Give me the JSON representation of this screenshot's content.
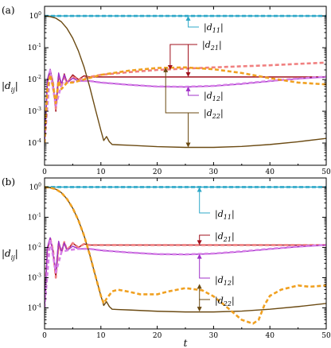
{
  "chart_data": [
    {
      "type": "line",
      "panel_label": "(a)",
      "xlabel": "",
      "ylabel": "|d_ij|",
      "ylabel_parts": {
        "main": "|d",
        "sub": "ij",
        "end": "|"
      },
      "xlim": [
        0,
        50
      ],
      "ylim": [
        2e-05,
        2
      ],
      "yscale": "log",
      "grid": false,
      "x_ticks": [
        0,
        10,
        20,
        30,
        40,
        50
      ],
      "y_ticks": [
        {
          "value": 1,
          "base": "10",
          "exp": "0"
        },
        {
          "value": 0.1,
          "base": "10",
          "exp": "-1"
        },
        {
          "value": 0.01,
          "base": "10",
          "exp": "-2"
        },
        {
          "value": 0.001,
          "base": "10",
          "exp": "-3"
        },
        {
          "value": 0.0001,
          "base": "10",
          "exp": "-4"
        }
      ],
      "series": [
        {
          "name": "|d11|",
          "color": "#2ea8c8",
          "style": "solid",
          "x": [
            0,
            10,
            20,
            30,
            40,
            50
          ],
          "y": [
            1,
            1,
            1,
            1,
            1,
            1
          ]
        },
        {
          "name": "|d11|",
          "color": "#2ea8c8",
          "style": "dashed",
          "x": [
            0,
            10,
            20,
            30,
            40,
            50
          ],
          "y": [
            1,
            1,
            1,
            1,
            1,
            1
          ]
        },
        {
          "name": "|d21|",
          "color": "#a0101c",
          "style": "solid",
          "x": [
            0,
            0.5,
            1,
            1.5,
            2,
            2.5,
            3,
            3.5,
            4,
            5,
            6,
            7,
            8,
            10,
            20,
            30,
            40,
            50
          ],
          "y": [
            0.0001,
            0.008,
            0.02,
            0.008,
            0.001,
            0.013,
            0.007,
            0.015,
            0.008,
            0.014,
            0.01,
            0.013,
            0.012,
            0.012,
            0.012,
            0.012,
            0.012,
            0.012
          ]
        },
        {
          "name": "|d21|",
          "color": "#f08080",
          "style": "dashed",
          "x": [
            0,
            0.5,
            1,
            1.5,
            2,
            2.5,
            3,
            3.5,
            4,
            5,
            6,
            8,
            10,
            15,
            20,
            25,
            30,
            35,
            40,
            45,
            50
          ],
          "y": [
            0.0001,
            0.006,
            0.018,
            0.008,
            0.0012,
            0.012,
            0.006,
            0.013,
            0.008,
            0.012,
            0.01,
            0.012,
            0.014,
            0.017,
            0.02,
            0.022,
            0.024,
            0.026,
            0.028,
            0.031,
            0.034
          ]
        },
        {
          "name": "|d12|",
          "color": "#a030c8",
          "style": "solid",
          "x": [
            0,
            0.5,
            1,
            1.5,
            2,
            2.5,
            3,
            3.5,
            4,
            5,
            6,
            8,
            10,
            15,
            20,
            25,
            30,
            35,
            40,
            45,
            50
          ],
          "y": [
            0.0001,
            0.01,
            0.021,
            0.007,
            0.0015,
            0.016,
            0.007,
            0.014,
            0.008,
            0.011,
            0.009,
            0.009,
            0.008,
            0.0068,
            0.006,
            0.0058,
            0.0062,
            0.0072,
            0.0088,
            0.0105,
            0.012
          ]
        },
        {
          "name": "|d12|",
          "color": "#d880e8",
          "style": "dashed",
          "x": [
            0,
            1,
            2,
            3,
            4,
            6,
            8,
            10,
            15,
            20,
            25,
            30,
            35,
            40,
            45,
            50
          ],
          "y": [
            0.0001,
            0.019,
            0.0015,
            0.007,
            0.008,
            0.009,
            0.009,
            0.008,
            0.0068,
            0.006,
            0.0059,
            0.0063,
            0.0074,
            0.009,
            0.0107,
            0.0122
          ]
        },
        {
          "name": "|d22|",
          "color": "#6b4a12",
          "style": "solid",
          "x": [
            0,
            1,
            2,
            3,
            4,
            5,
            6,
            7,
            8,
            9,
            10,
            10.5,
            11,
            11.5,
            12,
            13,
            15,
            20,
            25,
            30,
            35,
            40,
            45,
            50
          ],
          "y": [
            1,
            0.95,
            0.85,
            0.65,
            0.4,
            0.2,
            0.08,
            0.025,
            0.006,
            0.0012,
            0.00025,
            0.00012,
            0.00016,
            0.00011,
            9e-05,
            8.8e-05,
            8.5e-05,
            7.7e-05,
            7.3e-05,
            7.3e-05,
            7.8e-05,
            9e-05,
            0.00011,
            0.00014
          ]
        },
        {
          "name": "|d22|",
          "color": "#f0a020",
          "style": "dashed",
          "x": [
            0,
            0.5,
            1,
            1.5,
            2,
            2.5,
            3,
            4,
            5,
            7,
            10,
            15,
            20,
            25,
            30,
            35,
            40,
            45,
            50
          ],
          "y": [
            0.0001,
            0.0048,
            0.014,
            0.006,
            0.0018,
            0.009,
            0.005,
            0.008,
            0.008,
            0.01,
            0.014,
            0.019,
            0.023,
            0.024,
            0.021,
            0.016,
            0.011,
            0.008,
            0.007
          ]
        }
      ],
      "annotations": [
        {
          "parts": {
            "main": "|d",
            "sub": "11",
            "end": "|"
          }
        },
        {
          "parts": {
            "main": "|d",
            "sub": "21",
            "end": "|"
          }
        },
        {
          "parts": {
            "main": "|d",
            "sub": "12",
            "end": "|"
          }
        },
        {
          "parts": {
            "main": "|d",
            "sub": "22",
            "end": "|"
          }
        }
      ]
    },
    {
      "type": "line",
      "panel_label": "(b)",
      "xlabel": "t",
      "ylabel": "|d_ij|",
      "ylabel_parts": {
        "main": "|d",
        "sub": "ij",
        "end": "|"
      },
      "xlim": [
        0,
        50
      ],
      "ylim": [
        2e-05,
        2
      ],
      "yscale": "log",
      "grid": false,
      "x_ticks": [
        0,
        10,
        20,
        30,
        40,
        50
      ],
      "y_ticks": [
        {
          "value": 1,
          "base": "10",
          "exp": "0"
        },
        {
          "value": 0.1,
          "base": "10",
          "exp": "-1"
        },
        {
          "value": 0.01,
          "base": "10",
          "exp": "-2"
        },
        {
          "value": 0.001,
          "base": "10",
          "exp": "-3"
        },
        {
          "value": 0.0001,
          "base": "10",
          "exp": "-4"
        }
      ],
      "series": [
        {
          "name": "|d11|",
          "color": "#2ea8c8",
          "style": "solid",
          "x": [
            0,
            10,
            20,
            30,
            40,
            50
          ],
          "y": [
            1,
            1,
            1,
            1,
            1,
            1
          ]
        },
        {
          "name": "|d11|",
          "color": "#2ea8c8",
          "style": "dashed",
          "x": [
            0,
            10,
            20,
            30,
            40,
            50
          ],
          "y": [
            1,
            1,
            1,
            1,
            1,
            1
          ]
        },
        {
          "name": "|d21|",
          "color": "#a0101c",
          "style": "solid",
          "x": [
            0,
            0.5,
            1,
            1.5,
            2,
            2.5,
            3,
            3.5,
            4,
            5,
            6,
            7,
            8,
            10,
            20,
            30,
            40,
            50
          ],
          "y": [
            0.0001,
            0.008,
            0.02,
            0.008,
            0.001,
            0.013,
            0.007,
            0.015,
            0.008,
            0.014,
            0.01,
            0.013,
            0.012,
            0.012,
            0.012,
            0.012,
            0.012,
            0.012
          ]
        },
        {
          "name": "|d21|",
          "color": "#f08080",
          "style": "dashed",
          "x": [
            0,
            0.5,
            1,
            1.5,
            2,
            2.5,
            3,
            3.5,
            4,
            5,
            6,
            7,
            8,
            10,
            20,
            30,
            40,
            50
          ],
          "y": [
            0.0001,
            0.008,
            0.02,
            0.008,
            0.001,
            0.013,
            0.007,
            0.015,
            0.008,
            0.014,
            0.01,
            0.013,
            0.012,
            0.012,
            0.012,
            0.012,
            0.012,
            0.012
          ]
        },
        {
          "name": "|d12|",
          "color": "#a030c8",
          "style": "solid",
          "x": [
            0,
            0.5,
            1,
            1.5,
            2,
            2.5,
            3,
            3.5,
            4,
            5,
            6,
            8,
            10,
            15,
            20,
            25,
            30,
            35,
            40,
            45,
            50
          ],
          "y": [
            0.0001,
            0.01,
            0.021,
            0.007,
            0.0015,
            0.016,
            0.007,
            0.014,
            0.008,
            0.011,
            0.009,
            0.009,
            0.008,
            0.0068,
            0.006,
            0.0058,
            0.0062,
            0.0072,
            0.0088,
            0.0105,
            0.012
          ]
        },
        {
          "name": "|d12|",
          "color": "#d880e8",
          "style": "dashed",
          "x": [
            0,
            1,
            2,
            3,
            4,
            6,
            8,
            10,
            15,
            20,
            25,
            30,
            35,
            40,
            45,
            50
          ],
          "y": [
            0.0001,
            0.019,
            0.0015,
            0.007,
            0.008,
            0.009,
            0.009,
            0.008,
            0.0068,
            0.006,
            0.0059,
            0.0063,
            0.0074,
            0.009,
            0.0107,
            0.0122
          ]
        },
        {
          "name": "|d22|",
          "color": "#6b4a12",
          "style": "solid",
          "x": [
            0,
            1,
            2,
            3,
            4,
            5,
            6,
            7,
            8,
            9,
            10,
            10.5,
            11,
            11.5,
            12,
            13,
            15,
            20,
            25,
            30,
            35,
            40,
            45,
            50
          ],
          "y": [
            1,
            0.95,
            0.85,
            0.65,
            0.4,
            0.2,
            0.08,
            0.025,
            0.006,
            0.0012,
            0.00025,
            0.00012,
            0.00016,
            0.00011,
            9e-05,
            8.8e-05,
            8.5e-05,
            7.7e-05,
            7.3e-05,
            7.3e-05,
            7.8e-05,
            9e-05,
            0.00011,
            0.00014
          ]
        },
        {
          "name": "|d22|",
          "color": "#f0a020",
          "style": "dashed",
          "x": [
            0,
            1,
            2,
            3,
            4,
            5,
            6,
            7,
            8,
            9,
            10,
            10.5,
            11,
            12,
            13,
            15,
            17,
            20,
            22,
            25,
            28,
            30,
            32,
            35,
            37,
            38,
            39,
            40,
            42,
            45,
            47,
            50
          ],
          "y": [
            1,
            0.95,
            0.85,
            0.65,
            0.4,
            0.2,
            0.08,
            0.025,
            0.006,
            0.0012,
            0.00025,
            0.00014,
            0.0002,
            0.00035,
            0.0004,
            0.00034,
            0.00028,
            0.00028,
            0.00035,
            0.00045,
            0.00038,
            0.00024,
            0.00012,
            4e-05,
            3e-05,
            4e-05,
            0.00012,
            0.00025,
            0.0004,
            0.00055,
            0.0005,
            0.00055
          ]
        }
      ],
      "annotations": [
        {
          "parts": {
            "main": "|d",
            "sub": "11",
            "end": "|"
          }
        },
        {
          "parts": {
            "main": "|d",
            "sub": "21",
            "end": "|"
          }
        },
        {
          "parts": {
            "main": "|d",
            "sub": "12",
            "end": "|"
          }
        },
        {
          "parts": {
            "main": "|d",
            "sub": "22",
            "end": "|"
          }
        }
      ]
    }
  ]
}
